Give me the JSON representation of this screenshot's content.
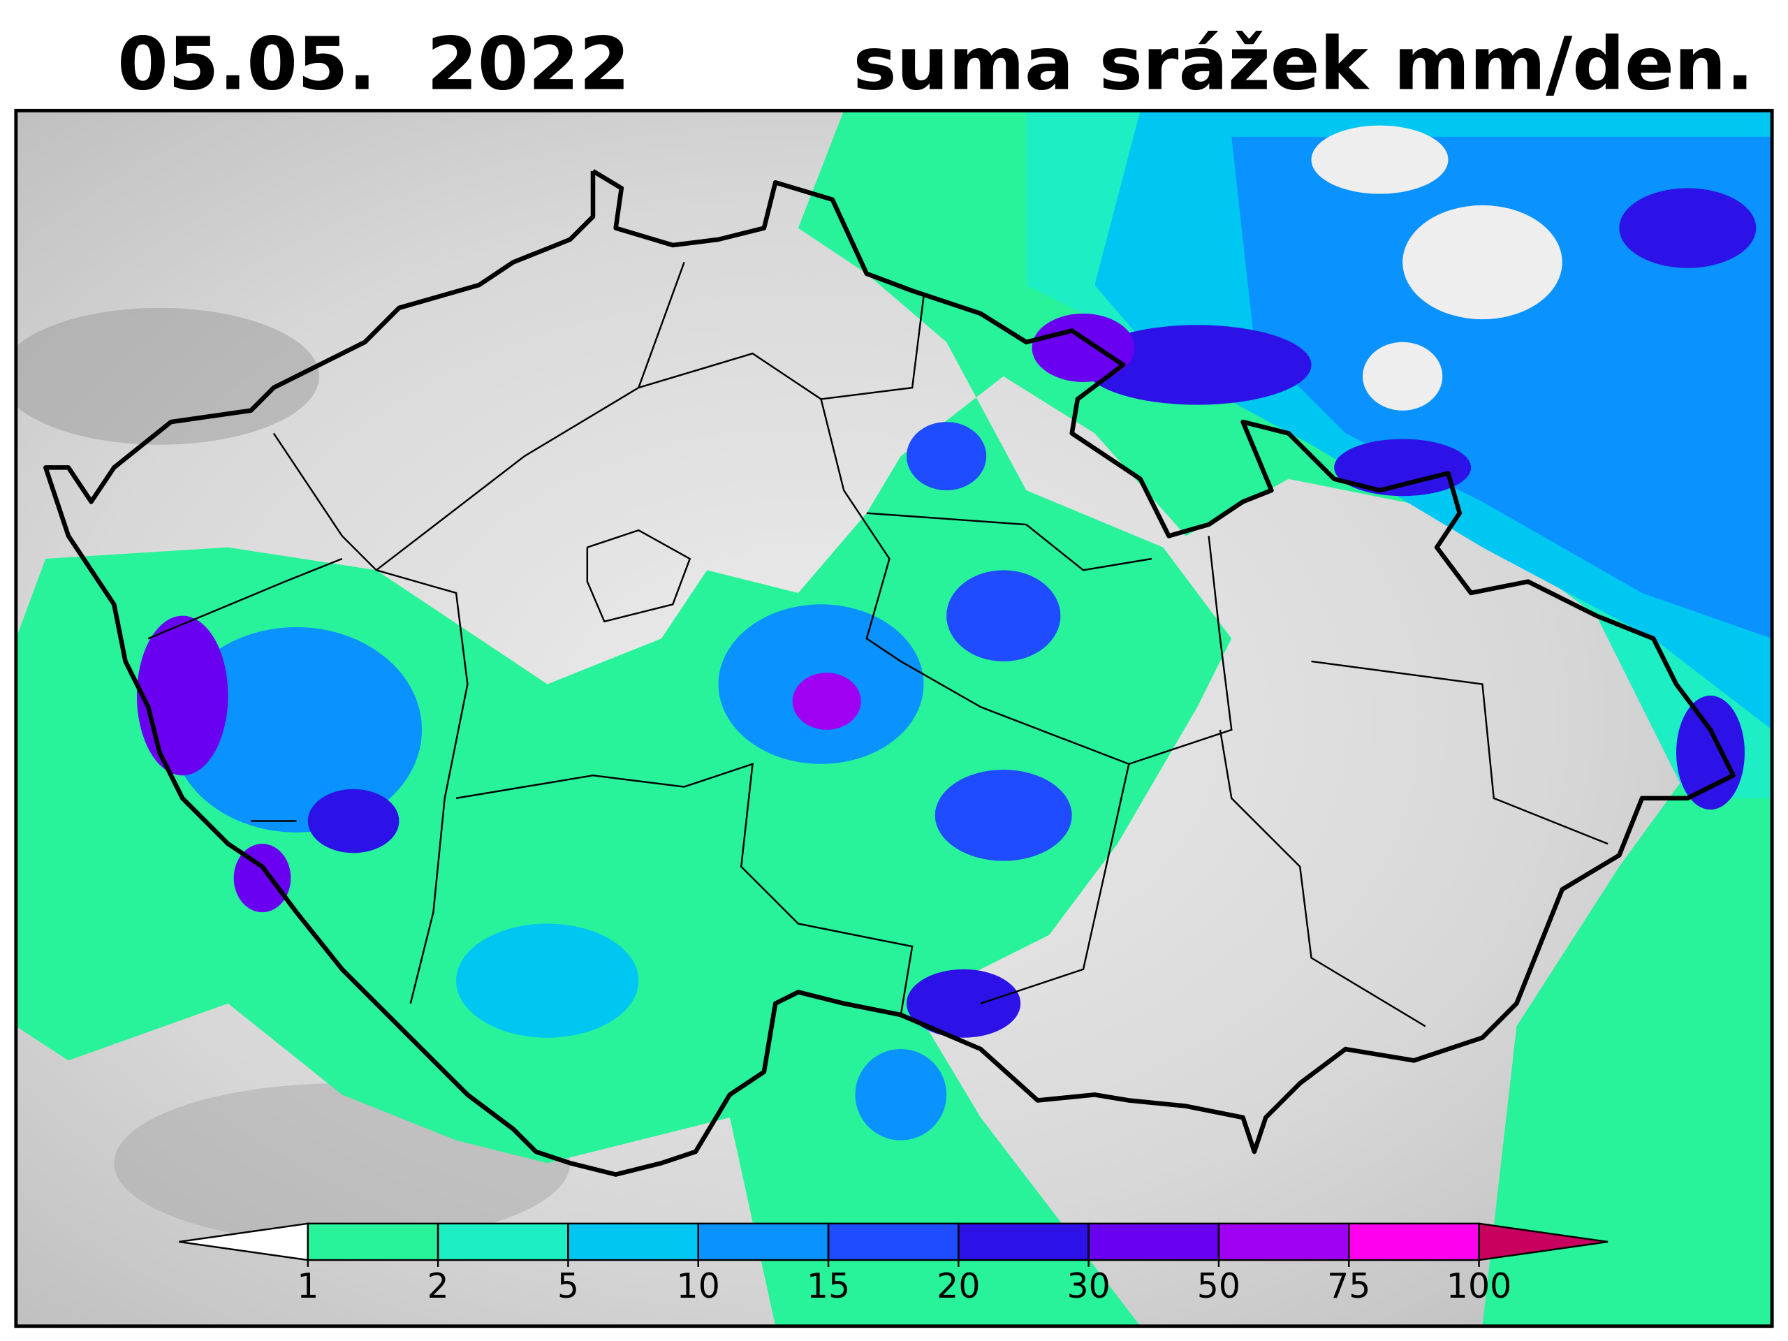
{
  "map": {
    "date": "05.05.  2022",
    "title": "suma srážek mm/den.",
    "colorbar": {
      "levels": [
        1,
        2,
        5,
        10,
        15,
        20,
        30,
        50,
        75,
        100
      ],
      "colors": [
        "#28f39a",
        "#1deec3",
        "#00c6f2",
        "#0a92ff",
        "#1f4cff",
        "#2d12e8",
        "#6a00f0",
        "#a000f2",
        "#ff00ee"
      ],
      "under_color": "#ffffff",
      "over_color": "#c8005e"
    }
  }
}
